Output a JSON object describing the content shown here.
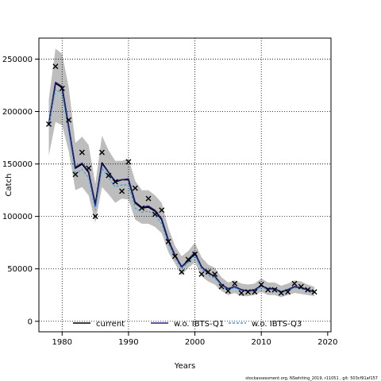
{
  "chart_data": {
    "type": "line",
    "xlabel": "Years",
    "ylabel": "Catch",
    "xlim": [
      1976.5,
      2020.5
    ],
    "ylim": [
      -10000,
      270000
    ],
    "x_ticks": [
      1980,
      1990,
      2000,
      2010,
      2020
    ],
    "y_ticks": [
      0,
      50000,
      100000,
      150000,
      200000,
      250000
    ],
    "x_tick_labels": [
      "1980",
      "1990",
      "2000",
      "2010",
      "2020"
    ],
    "y_tick_labels": [
      "0",
      "50000",
      "100000",
      "150000",
      "200000",
      "250000"
    ],
    "grid": true,
    "legend": {
      "placement": "bottom-center",
      "entries": [
        {
          "label": "current",
          "color": "#000000",
          "style": "solid"
        },
        {
          "label": "w.o. IBTS-Q1",
          "color": "#2b1f8a",
          "style": "solid"
        },
        {
          "label": "w.o. IBTS-Q3",
          "color": "#3aa0e0",
          "style": "dashed"
        }
      ]
    },
    "observed": {
      "marker": "x",
      "x": [
        1978,
        1979,
        1980,
        1981,
        1982,
        1983,
        1984,
        1985,
        1986,
        1987,
        1988,
        1989,
        1990,
        1991,
        1992,
        1993,
        1994,
        1995,
        1996,
        1997,
        1998,
        1999,
        2000,
        2001,
        2002,
        2003,
        2004,
        2005,
        2006,
        2007,
        2008,
        2009,
        2010,
        2011,
        2012,
        2013,
        2014,
        2015,
        2016,
        2017,
        2018
      ],
      "y": [
        188000,
        243000,
        222000,
        192000,
        140000,
        161000,
        146000,
        100000,
        161000,
        139000,
        133000,
        124000,
        152000,
        127000,
        108000,
        117000,
        102000,
        106000,
        76000,
        62000,
        47000,
        59000,
        64000,
        45000,
        47000,
        45000,
        33000,
        29000,
        36000,
        27000,
        28000,
        28000,
        35000,
        30000,
        30000,
        27000,
        28000,
        36000,
        33000,
        30000,
        28000
      ]
    },
    "band": {
      "color": "#bdbdbd",
      "x": [
        1978,
        1979,
        1980,
        1981,
        1982,
        1983,
        1984,
        1985,
        1986,
        1987,
        1988,
        1989,
        1990,
        1991,
        1992,
        1993,
        1994,
        1995,
        1996,
        1997,
        1998,
        1999,
        2000,
        2001,
        2002,
        2003,
        2004,
        2005,
        2006,
        2007,
        2008,
        2009,
        2010,
        2011,
        2012,
        2013,
        2014,
        2015,
        2016,
        2017,
        2018
      ],
      "lower": [
        158000,
        190000,
        187000,
        162000,
        125000,
        128000,
        120000,
        94000,
        128000,
        121000,
        113000,
        117000,
        116000,
        97000,
        93000,
        93000,
        90000,
        84000,
        66000,
        55000,
        44000,
        51000,
        56000,
        43000,
        38000,
        35000,
        29000,
        25000,
        27000,
        24000,
        24000,
        25000,
        28000,
        25000,
        25000,
        23000,
        25000,
        27000,
        26000,
        25000,
        24000
      ],
      "upper": [
        212000,
        260000,
        255000,
        223000,
        170000,
        176000,
        168000,
        131000,
        177000,
        163000,
        153000,
        153000,
        155000,
        134000,
        125000,
        125000,
        120000,
        113000,
        89000,
        72000,
        62000,
        67000,
        75000,
        61000,
        54000,
        51000,
        42000,
        37000,
        39000,
        36000,
        35000,
        36000,
        41000,
        37000,
        37000,
        34000,
        36000,
        39000,
        38000,
        35000,
        33000
      ]
    },
    "series": [
      {
        "name": "current",
        "color": "#000000",
        "values": [
          188000,
          227000,
          223000,
          185000,
          146000,
          150000,
          142000,
          111000,
          151000,
          142000,
          133000,
          135000,
          135000,
          113000,
          108000,
          109000,
          105000,
          97000,
          77000,
          63000,
          52000,
          58000,
          65000,
          52000,
          46000,
          43000,
          35000,
          31000,
          33000,
          30000,
          29000,
          30000,
          34000,
          31000,
          31000,
          28000,
          30000,
          33000,
          32000,
          30000,
          28000
        ]
      },
      {
        "name": "w.o. IBTS-Q1",
        "color": "#2b1f8a",
        "values": [
          188000,
          228000,
          224000,
          186000,
          147000,
          151000,
          143000,
          110000,
          150000,
          142000,
          134000,
          135000,
          136000,
          114000,
          109000,
          110000,
          106000,
          98000,
          78000,
          63000,
          52000,
          59000,
          66000,
          52000,
          46000,
          43000,
          35000,
          31000,
          33000,
          30000,
          29000,
          30000,
          34000,
          31000,
          31000,
          28000,
          30000,
          33000,
          32000,
          30000,
          28000
        ]
      },
      {
        "name": "w.o. IBTS-Q3",
        "color": "#3aa0e0",
        "values": [
          186000,
          221000,
          217000,
          180000,
          140000,
          145000,
          137000,
          106000,
          146000,
          137000,
          128000,
          130000,
          130000,
          108000,
          104000,
          105000,
          101000,
          93000,
          74000,
          60000,
          50000,
          56000,
          63000,
          50000,
          44000,
          41000,
          34000,
          30000,
          32000,
          29000,
          28000,
          29000,
          33000,
          30000,
          30000,
          27000,
          29000,
          32000,
          31000,
          29000,
          27000
        ]
      }
    ]
  },
  "footer": "stockassessment.org, NSwhiting_2019, r11051 , git: 503cf91af157"
}
